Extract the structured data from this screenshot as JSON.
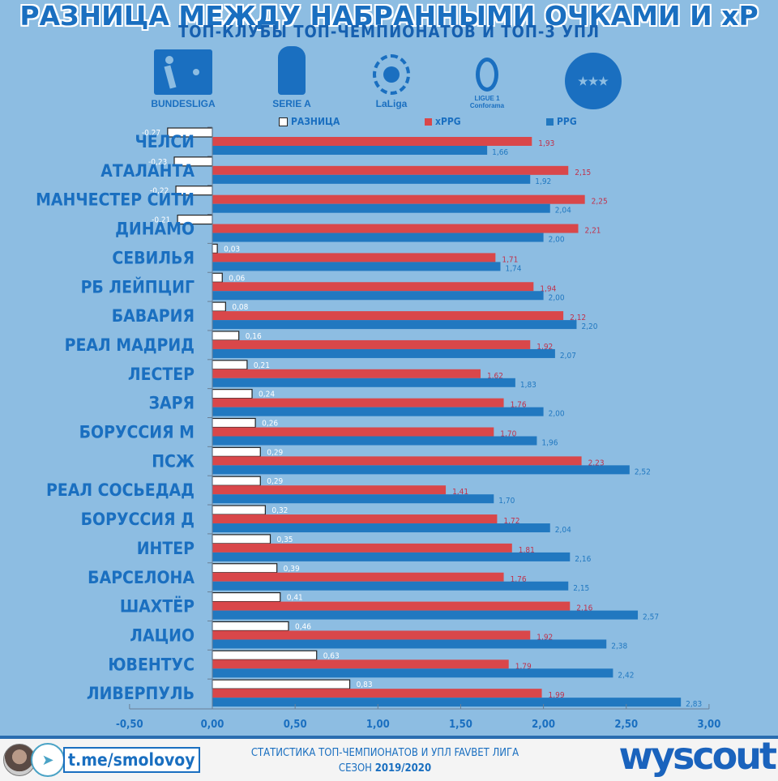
{
  "header": {
    "title": "РАЗНИЦА МЕЖДУ НАБРАННЫМИ ОЧКАМИ И xP",
    "subtitle": "ТОП-КЛУБЫ ТОП-ЧЕМПИОНАТОВ И ТОП-3 УПЛ"
  },
  "logos": [
    {
      "name": "bundesliga-logo",
      "label": "BUNDESLIGA"
    },
    {
      "name": "serie-a-logo",
      "label": "SERIE A"
    },
    {
      "name": "laliga-logo",
      "label": "LaLiga"
    },
    {
      "name": "ligue1-logo",
      "label": "LIGUE 1 Conforama"
    },
    {
      "name": "favbet-liga-logo",
      "label": "FAVBET ЛІГА"
    }
  ],
  "colors": {
    "background": "#8dbde2",
    "diff": "#ffffff",
    "xppg": "#d9474a",
    "ppg": "#2178c0",
    "text": "#1a6fc0",
    "xppg_label": "#c0304a"
  },
  "chart_data": {
    "type": "bar",
    "orientation": "horizontal",
    "title": "РАЗНИЦА МЕЖДУ НАБРАННЫМИ ОЧКАМИ И xP",
    "subtitle": "ТОП-КЛУБЫ ТОП-ЧЕМПИОНАТОВ И ТОП-3 УПЛ",
    "categories": [
      "ЧЕЛСИ",
      "АТАЛАНТА",
      "МАНЧЕСТЕР СИТИ",
      "ДИНАМО",
      "СЕВИЛЬЯ",
      "РБ ЛЕЙПЦИГ",
      "БАВАРИЯ",
      "РЕАЛ МАДРИД",
      "ЛЕСТЕР",
      "ЗАРЯ",
      "БОРУССИЯ М",
      "ПСЖ",
      "РЕАЛ СОСЬЕДАД",
      "БОРУССИЯ Д",
      "ИНТЕР",
      "БАРСЕЛОНА",
      "ШАХТЁР",
      "ЛАЦИО",
      "ЮВЕНТУС",
      "ЛИВЕРПУЛЬ"
    ],
    "series": [
      {
        "name": "РАЗНИЦА",
        "values": [
          -0.27,
          -0.23,
          -0.22,
          -0.21,
          0.03,
          0.06,
          0.08,
          0.16,
          0.21,
          0.24,
          0.26,
          0.29,
          0.29,
          0.32,
          0.35,
          0.39,
          0.41,
          0.46,
          0.63,
          0.83
        ],
        "labels": [
          "-0,27",
          "-0,23",
          "-0,22",
          "-0,21",
          "0,03",
          "0,06",
          "0,08",
          "0,16",
          "0,21",
          "0,24",
          "0,26",
          "0,29",
          "0,29",
          "0,32",
          "0,35",
          "0,39",
          "0,41",
          "0,46",
          "0,63",
          "0,83"
        ]
      },
      {
        "name": "xPPG",
        "values": [
          1.93,
          2.15,
          2.25,
          2.21,
          1.71,
          1.94,
          2.12,
          1.92,
          1.62,
          1.76,
          1.7,
          2.23,
          1.41,
          1.72,
          1.81,
          1.76,
          2.16,
          1.92,
          1.79,
          1.99
        ],
        "labels": [
          "1,93",
          "2,15",
          "2,25",
          "2,21",
          "1,71",
          "1,94",
          "2,12",
          "1,92",
          "1,62",
          "1,76",
          "1,70",
          "2,23",
          "1,41",
          "1,72",
          "1,81",
          "1,76",
          "2,16",
          "1,92",
          "1,79",
          "1,99"
        ]
      },
      {
        "name": "PPG",
        "values": [
          1.66,
          1.92,
          2.04,
          2.0,
          1.74,
          2.0,
          2.2,
          2.07,
          1.83,
          2.0,
          1.96,
          2.52,
          1.7,
          2.04,
          2.16,
          2.15,
          2.57,
          2.38,
          2.42,
          2.83
        ],
        "labels": [
          "1,66",
          "1,92",
          "2,04",
          "2,00",
          "1,74",
          "2,00",
          "2,20",
          "2,07",
          "1,83",
          "2,00",
          "1,96",
          "2,52",
          "1,70",
          "2,04",
          "2,16",
          "2,15",
          "2,57",
          "2,38",
          "2,42",
          "2,83"
        ]
      }
    ],
    "xlabel": "",
    "ylabel": "",
    "xlim": [
      -0.5,
      3.0
    ],
    "xticks": [
      -0.5,
      0,
      0.5,
      1,
      1.5,
      2,
      2.5,
      3
    ],
    "xtick_labels": [
      "-0,50",
      "0,00",
      "0,50",
      "1,00",
      "1,50",
      "2,00",
      "2,50",
      "3,00"
    ],
    "grid": false,
    "legend": {
      "placement": "top",
      "entries": [
        "РАЗНИЦА",
        "xPPG",
        "PPG"
      ]
    }
  },
  "footer": {
    "telegram": "t.me/smolovoy",
    "line1": "СТАТИСТИКА ТОП-ЧЕМПИОНАТОВ И УПЛ FAVBET ЛИГА",
    "line2_prefix": "СЕЗОН",
    "season": "2019/2020",
    "brand": "wyscout"
  }
}
